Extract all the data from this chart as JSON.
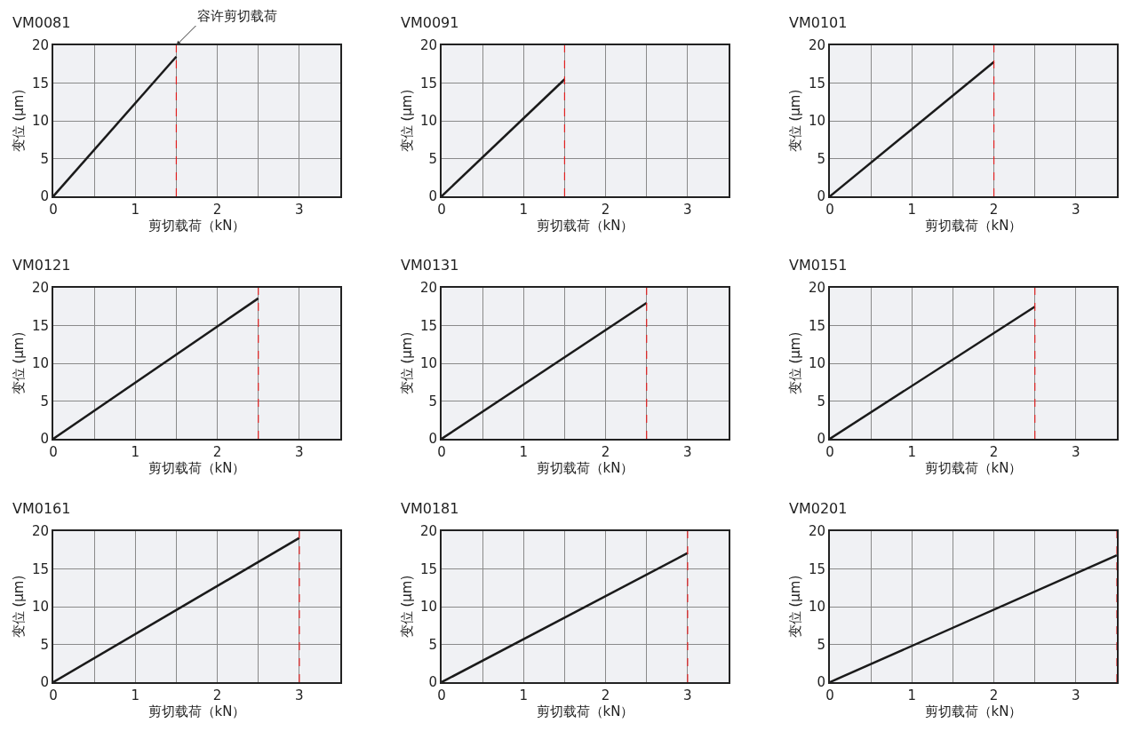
{
  "chart_data": [
    {
      "type": "line",
      "title": "VM0081",
      "xlabel": "剪切载荷（kN）",
      "ylabel": "变位 (μm)",
      "x": [
        0,
        1.5
      ],
      "values": [
        0,
        18.5
      ],
      "color": "#1a1a1a",
      "xlim": [
        0,
        3.5
      ],
      "ylim": [
        0,
        20
      ],
      "xticks": [
        0,
        {
          "value": 0.5,
          "label": null
        },
        1,
        {
          "value": 1.5,
          "label": null
        },
        2,
        {
          "value": 2.5,
          "label": null
        },
        3
      ],
      "yticks": [
        0,
        5,
        10,
        15,
        20
      ],
      "grid": true,
      "ref_lines": [
        {
          "axis": "x",
          "value": 1.5,
          "color": "#e02020",
          "line_style": "dashed"
        }
      ],
      "annotations": [
        {
          "text": "容许剪切载荷",
          "x": 1.5,
          "y": 20
        }
      ]
    },
    {
      "type": "line",
      "title": "VM0091",
      "xlabel": "剪切载荷（kN）",
      "ylabel": "变位 (μm)",
      "x": [
        0,
        1.5
      ],
      "values": [
        0,
        15.5
      ],
      "color": "#1a1a1a",
      "xlim": [
        0,
        3.5
      ],
      "ylim": [
        0,
        20
      ],
      "xticks": [
        0,
        {
          "value": 0.5,
          "label": null
        },
        1,
        {
          "value": 1.5,
          "label": null
        },
        2,
        {
          "value": 2.5,
          "label": null
        },
        3
      ],
      "yticks": [
        0,
        5,
        10,
        15,
        20
      ],
      "grid": true,
      "ref_lines": [
        {
          "axis": "x",
          "value": 1.5,
          "color": "#e02020",
          "line_style": "dashed"
        }
      ]
    },
    {
      "type": "line",
      "title": "VM0101",
      "xlabel": "剪切载荷（kN）",
      "ylabel": "变位 (μm)",
      "x": [
        0,
        2
      ],
      "values": [
        0,
        17.8
      ],
      "color": "#1a1a1a",
      "xlim": [
        0,
        3.5
      ],
      "ylim": [
        0,
        20
      ],
      "xticks": [
        0,
        {
          "value": 0.5,
          "label": null
        },
        1,
        {
          "value": 1.5,
          "label": null
        },
        2,
        {
          "value": 2.5,
          "label": null
        },
        3
      ],
      "yticks": [
        0,
        5,
        10,
        15,
        20
      ],
      "grid": true,
      "ref_lines": [
        {
          "axis": "x",
          "value": 2,
          "color": "#e02020",
          "line_style": "dashed"
        }
      ]
    },
    {
      "type": "line",
      "title": "VM0121",
      "xlabel": "剪切载荷（kN）",
      "ylabel": "变位 (μm)",
      "x": [
        0,
        2.5
      ],
      "values": [
        0,
        18.6
      ],
      "color": "#1a1a1a",
      "xlim": [
        0,
        3.5
      ],
      "ylim": [
        0,
        20
      ],
      "xticks": [
        0,
        {
          "value": 0.5,
          "label": null
        },
        1,
        {
          "value": 1.5,
          "label": null
        },
        2,
        {
          "value": 2.5,
          "label": null
        },
        3
      ],
      "yticks": [
        0,
        5,
        10,
        15,
        20
      ],
      "grid": true,
      "ref_lines": [
        {
          "axis": "x",
          "value": 2.5,
          "color": "#e02020",
          "line_style": "dashed"
        }
      ]
    },
    {
      "type": "line",
      "title": "VM0131",
      "xlabel": "剪切载荷（kN）",
      "ylabel": "变位 (μm)",
      "x": [
        0,
        2.5
      ],
      "values": [
        0,
        18.0
      ],
      "color": "#1a1a1a",
      "xlim": [
        0,
        3.5
      ],
      "ylim": [
        0,
        20
      ],
      "xticks": [
        0,
        {
          "value": 0.5,
          "label": null
        },
        1,
        {
          "value": 1.5,
          "label": null
        },
        2,
        {
          "value": 2.5,
          "label": null
        },
        3
      ],
      "yticks": [
        0,
        5,
        10,
        15,
        20
      ],
      "grid": true,
      "ref_lines": [
        {
          "axis": "x",
          "value": 2.5,
          "color": "#e02020",
          "line_style": "dashed"
        }
      ]
    },
    {
      "type": "line",
      "title": "VM0151",
      "xlabel": "剪切载荷（kN）",
      "ylabel": "变位 (μm)",
      "x": [
        0,
        2.5
      ],
      "values": [
        0,
        17.5
      ],
      "color": "#1a1a1a",
      "xlim": [
        0,
        3.5
      ],
      "ylim": [
        0,
        20
      ],
      "xticks": [
        0,
        {
          "value": 0.5,
          "label": null
        },
        1,
        {
          "value": 1.5,
          "label": null
        },
        2,
        {
          "value": 2.5,
          "label": null
        },
        3
      ],
      "yticks": [
        0,
        5,
        10,
        15,
        20
      ],
      "grid": true,
      "ref_lines": [
        {
          "axis": "x",
          "value": 2.5,
          "color": "#e02020",
          "line_style": "dashed"
        }
      ]
    },
    {
      "type": "line",
      "title": "VM0161",
      "xlabel": "剪切载荷（kN）",
      "ylabel": "变位 (μm)",
      "x": [
        0,
        3
      ],
      "values": [
        0,
        19.1
      ],
      "color": "#1a1a1a",
      "xlim": [
        0,
        3.5
      ],
      "ylim": [
        0,
        20
      ],
      "xticks": [
        0,
        {
          "value": 0.5,
          "label": null
        },
        1,
        {
          "value": 1.5,
          "label": null
        },
        2,
        {
          "value": 2.5,
          "label": null
        },
        3
      ],
      "yticks": [
        0,
        5,
        10,
        15,
        20
      ],
      "grid": true,
      "ref_lines": [
        {
          "axis": "x",
          "value": 3,
          "color": "#e02020",
          "line_style": "dashed"
        }
      ]
    },
    {
      "type": "line",
      "title": "VM0181",
      "xlabel": "剪切载荷（kN）",
      "ylabel": "变位 (μm)",
      "x": [
        0,
        3
      ],
      "values": [
        0,
        17.1
      ],
      "color": "#1a1a1a",
      "xlim": [
        0,
        3.5
      ],
      "ylim": [
        0,
        20
      ],
      "xticks": [
        0,
        {
          "value": 0.5,
          "label": null
        },
        1,
        {
          "value": 1.5,
          "label": null
        },
        2,
        {
          "value": 2.5,
          "label": null
        },
        3
      ],
      "yticks": [
        0,
        5,
        10,
        15,
        20
      ],
      "grid": true,
      "ref_lines": [
        {
          "axis": "x",
          "value": 3,
          "color": "#e02020",
          "line_style": "dashed"
        }
      ]
    },
    {
      "type": "line",
      "title": "VM0201",
      "xlabel": "剪切载荷（kN）",
      "ylabel": "变位 (μm)",
      "x": [
        0,
        3.5
      ],
      "values": [
        0,
        16.8
      ],
      "color": "#1a1a1a",
      "xlim": [
        0,
        3.5
      ],
      "ylim": [
        0,
        20
      ],
      "xticks": [
        0,
        {
          "value": 0.5,
          "label": null
        },
        1,
        {
          "value": 1.5,
          "label": null
        },
        2,
        {
          "value": 2.5,
          "label": null
        },
        3
      ],
      "yticks": [
        0,
        5,
        10,
        15,
        20
      ],
      "grid": true,
      "ref_lines": [
        {
          "axis": "x",
          "value": 3.5,
          "color": "#e02020",
          "line_style": "dashed"
        }
      ]
    }
  ]
}
